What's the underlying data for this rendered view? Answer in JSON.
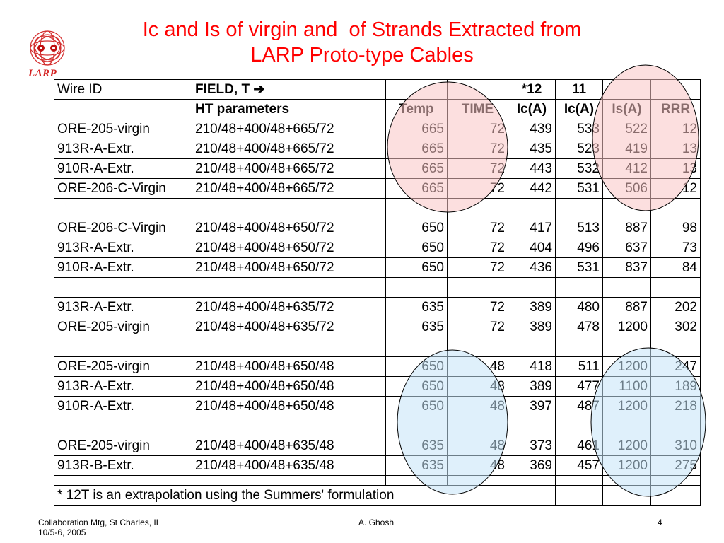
{
  "logo": {
    "label": "LARP",
    "icon": "larp-logo-icon"
  },
  "title": {
    "line1": "Ic and Is of virgin and  of Strands Extracted from",
    "line2": "LARP Proto-type Cables"
  },
  "table": {
    "header1": [
      "Wire ID",
      "FIELD, T ➔",
      "",
      "",
      "*12",
      "11",
      "",
      ""
    ],
    "header2": [
      "",
      "HT parameters",
      "Temp",
      "TIME",
      "Ic(A)",
      "Ic(A)",
      "Is(A)",
      "RRR"
    ],
    "groups": [
      [
        [
          "ORE-205-virgin",
          "210/48+400/48+665/72",
          "665",
          "72",
          "439",
          "533",
          "522",
          "12"
        ],
        [
          "913R-A-Extr.",
          "210/48+400/48+665/72",
          "665",
          "72",
          "435",
          "523",
          "419",
          "13"
        ],
        [
          "910R-A-Extr.",
          "210/48+400/48+665/72",
          "665",
          "72",
          "443",
          "532",
          "412",
          "13"
        ],
        [
          "ORE-206-C-Virgin",
          "210/48+400/48+665/72",
          "665",
          "72",
          "442",
          "531",
          "506",
          "12"
        ]
      ],
      [
        [
          "ORE-206-C-Virgin",
          "210/48+400/48+650/72",
          "650",
          "72",
          "417",
          "513",
          "887",
          "98"
        ],
        [
          "913R-A-Extr.",
          "210/48+400/48+650/72",
          "650",
          "72",
          "404",
          "496",
          "637",
          "73"
        ],
        [
          "910R-A-Extr.",
          "210/48+400/48+650/72",
          "650",
          "72",
          "436",
          "531",
          "837",
          "84"
        ]
      ],
      [
        [
          "913R-A-Extr.",
          "210/48+400/48+635/72",
          "635",
          "72",
          "389",
          "480",
          "887",
          "202"
        ],
        [
          "ORE-205-virgin",
          "210/48+400/48+635/72",
          "635",
          "72",
          "389",
          "478",
          "1200",
          "302"
        ]
      ],
      [
        [
          "ORE-205-virgin",
          "210/48+400/48+650/48",
          "650",
          "48",
          "418",
          "511",
          "1200",
          "247"
        ],
        [
          "913R-A-Extr.",
          "210/48+400/48+650/48",
          "650",
          "48",
          "389",
          "477",
          "1100",
          "189"
        ],
        [
          "910R-A-Extr.",
          "210/48+400/48+650/48",
          "650",
          "48",
          "397",
          "487",
          "1200",
          "218"
        ]
      ],
      [
        [
          "ORE-205-virgin",
          "210/48+400/48+635/48",
          "635",
          "48",
          "373",
          "461",
          "1200",
          "310"
        ],
        [
          "913R-B-Extr.",
          "210/48+400/48+635/48",
          "635",
          "48",
          "369",
          "457",
          "1200",
          "275"
        ]
      ]
    ],
    "note": "* 12T is an extrapolation using the Summers' formulation"
  },
  "highlights": {
    "pink": "#f9c4c4",
    "blue": "#c4e4f8"
  },
  "footer": {
    "left_line1": "Collaboration Mtg, St Charles, IL",
    "left_line2": "10/5-6, 2005",
    "center": "A. Ghosh",
    "right": "4"
  }
}
